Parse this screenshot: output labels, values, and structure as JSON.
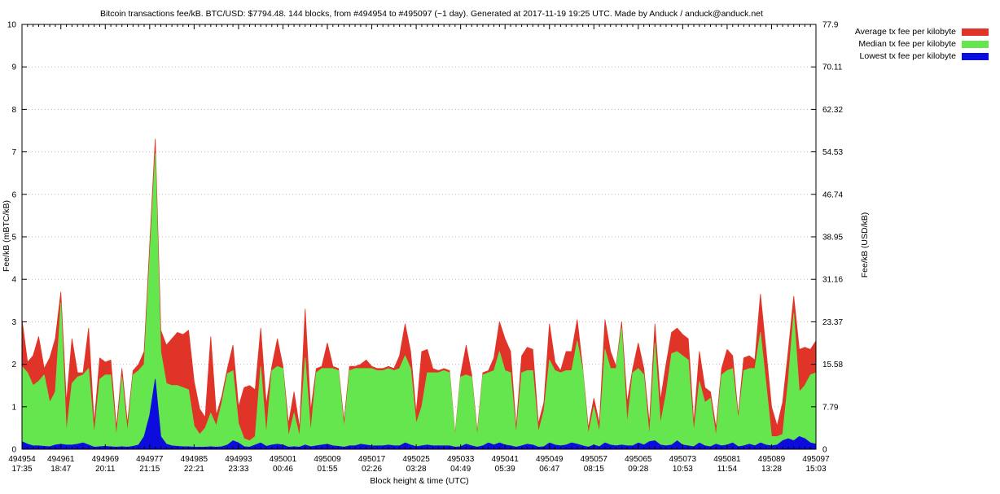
{
  "title": "Bitcoin transactions fee/kB. BTC/USD: $7794.48. 144 blocks, from #494954 to #495097 (~1 day). Generated at 2017-11-19 19:25 UTC. Made by Anduck / anduck@anduck.net",
  "legend": {
    "items": [
      {
        "label": "Average tx fee per kilobyte",
        "color": "#e13428"
      },
      {
        "label": "Median tx fee per kilobyte",
        "color": "#65e64e"
      },
      {
        "label": "Lowest tx fee per kilobyte",
        "color": "#0c0cdc"
      }
    ]
  },
  "axes": {
    "left": {
      "title": "Fee/kB (mBTC/kB)",
      "ticks": [
        "0",
        "1",
        "2",
        "3",
        "4",
        "5",
        "6",
        "7",
        "8",
        "9",
        "10"
      ]
    },
    "right": {
      "title": "Fee/kB (USD/kB)",
      "ticks": [
        "0",
        "7.79",
        "15.58",
        "23.37",
        "31.16",
        "38.95",
        "46.74",
        "54.53",
        "62.32",
        "70.11",
        "77.9"
      ]
    },
    "x": {
      "title": "Block height & time (UTC)",
      "ticks": [
        {
          "block": "494954",
          "time": "17:35"
        },
        {
          "block": "494961",
          "time": "18:47"
        },
        {
          "block": "494969",
          "time": "20:11"
        },
        {
          "block": "494977",
          "time": "21:15"
        },
        {
          "block": "494985",
          "time": "22:21"
        },
        {
          "block": "494993",
          "time": "23:33"
        },
        {
          "block": "495001",
          "time": "00:46"
        },
        {
          "block": "495009",
          "time": "01:55"
        },
        {
          "block": "495017",
          "time": "02:26"
        },
        {
          "block": "495025",
          "time": "03:28"
        },
        {
          "block": "495033",
          "time": "04:49"
        },
        {
          "block": "495041",
          "time": "05:39"
        },
        {
          "block": "495049",
          "time": "06:47"
        },
        {
          "block": "495057",
          "time": "08:15"
        },
        {
          "block": "495065",
          "time": "09:28"
        },
        {
          "block": "495073",
          "time": "10:53"
        },
        {
          "block": "495081",
          "time": "11:54"
        },
        {
          "block": "495089",
          "time": "13:28"
        },
        {
          "block": "495097",
          "time": "15:03"
        }
      ]
    }
  },
  "chart_data": {
    "type": "area",
    "title": "Bitcoin transactions fee/kB",
    "btc_usd": "7794.48",
    "block_count": 144,
    "x_start_block": 494954,
    "x_end_block": 495097,
    "ylim": [
      0,
      10
    ],
    "right_ylim": [
      0,
      77.9
    ],
    "grid": "horizontal-dotted",
    "legend_position": "outside-top-right",
    "series": [
      {
        "name": "Average tx fee per kilobyte",
        "color": "#e13428",
        "values": [
          3.05,
          2.05,
          2.2,
          2.65,
          1.9,
          2.15,
          2.6,
          3.7,
          1.1,
          2.6,
          1.8,
          1.8,
          2.85,
          0.6,
          2.15,
          2.05,
          2.1,
          0.5,
          1.9,
          0.6,
          1.85,
          2.0,
          2.3,
          4.8,
          7.3,
          2.8,
          2.45,
          2.6,
          2.75,
          2.7,
          2.8,
          1.6,
          0.95,
          0.75,
          2.65,
          0.8,
          1.25,
          1.9,
          2.45,
          1.0,
          1.45,
          1.5,
          1.4,
          2.85,
          1.05,
          1.95,
          2.6,
          1.95,
          0.6,
          1.35,
          0.5,
          3.3,
          0.9,
          1.9,
          1.95,
          2.5,
          1.95,
          1.9,
          0.65,
          1.95,
          1.95,
          2.0,
          2.1,
          1.95,
          1.9,
          1.9,
          1.95,
          1.9,
          2.2,
          2.95,
          2.3,
          0.85,
          2.3,
          2.35,
          1.9,
          1.85,
          1.9,
          1.85,
          0.35,
          1.75,
          2.45,
          1.75,
          0.4,
          1.8,
          1.85,
          2.15,
          3.0,
          2.6,
          2.3,
          0.5,
          2.2,
          2.4,
          2.35,
          0.6,
          1.1,
          2.95,
          2.05,
          1.85,
          2.3,
          2.3,
          3.05,
          1.9,
          0.5,
          1.2,
          0.6,
          3.05,
          2.3,
          1.95,
          3.0,
          1.1,
          1.9,
          2.5,
          1.9,
          0.6,
          2.95,
          1.15,
          2.0,
          2.75,
          2.85,
          2.7,
          2.6,
          0.6,
          2.3,
          1.45,
          1.35,
          0.5,
          1.9,
          2.35,
          2.2,
          0.8,
          2.15,
          2.2,
          2.1,
          3.65,
          2.35,
          1.0,
          0.55,
          1.1,
          2.3,
          3.6,
          2.35,
          2.4,
          2.35,
          2.55
        ]
      },
      {
        "name": "Median tx fee per kilobyte",
        "color": "#65e64e",
        "values": [
          1.95,
          1.8,
          1.5,
          1.6,
          1.75,
          1.1,
          1.35,
          3.45,
          0.4,
          1.55,
          1.7,
          1.75,
          1.9,
          0.35,
          1.65,
          1.75,
          1.75,
          0.3,
          1.7,
          0.4,
          1.75,
          1.85,
          2.0,
          4.5,
          6.95,
          2.3,
          1.55,
          1.5,
          1.5,
          1.45,
          1.4,
          0.55,
          0.35,
          0.5,
          0.85,
          0.55,
          1.1,
          1.78,
          1.85,
          0.6,
          0.25,
          0.2,
          0.3,
          1.95,
          0.35,
          1.85,
          1.95,
          1.9,
          0.3,
          0.85,
          0.3,
          2.15,
          0.4,
          1.8,
          1.9,
          1.9,
          1.9,
          1.85,
          0.5,
          1.85,
          1.9,
          1.9,
          1.9,
          1.9,
          1.85,
          1.85,
          1.9,
          1.85,
          1.9,
          2.2,
          1.9,
          0.6,
          1.0,
          1.8,
          1.8,
          1.8,
          1.85,
          1.8,
          0.3,
          1.7,
          1.75,
          1.7,
          0.3,
          1.75,
          1.8,
          1.85,
          2.3,
          1.85,
          1.8,
          0.35,
          1.8,
          1.85,
          1.85,
          0.4,
          0.9,
          2.1,
          1.85,
          1.8,
          1.85,
          1.85,
          2.55,
          1.85,
          0.35,
          1.0,
          0.4,
          2.35,
          1.9,
          1.9,
          2.85,
          0.6,
          1.8,
          1.9,
          1.75,
          0.3,
          2.5,
          0.6,
          1.3,
          2.25,
          2.3,
          2.2,
          2.1,
          0.4,
          1.6,
          1.1,
          1.2,
          0.3,
          1.75,
          1.85,
          1.9,
          0.7,
          1.85,
          1.9,
          1.9,
          2.75,
          1.55,
          0.3,
          0.3,
          0.35,
          1.6,
          3.2,
          1.35,
          1.5,
          1.75,
          1.8
        ]
      },
      {
        "name": "Lowest tx fee per kilobyte",
        "color": "#0c0cdc",
        "values": [
          0.18,
          0.12,
          0.08,
          0.08,
          0.07,
          0.06,
          0.1,
          0.12,
          0.1,
          0.1,
          0.12,
          0.15,
          0.1,
          0.05,
          0.06,
          0.07,
          0.06,
          0.05,
          0.06,
          0.05,
          0.07,
          0.1,
          0.3,
          0.8,
          1.65,
          0.3,
          0.12,
          0.08,
          0.07,
          0.06,
          0.06,
          0.05,
          0.05,
          0.05,
          0.06,
          0.05,
          0.06,
          0.1,
          0.2,
          0.15,
          0.06,
          0.05,
          0.1,
          0.15,
          0.07,
          0.1,
          0.12,
          0.1,
          0.05,
          0.06,
          0.05,
          0.1,
          0.06,
          0.08,
          0.1,
          0.12,
          0.08,
          0.07,
          0.05,
          0.08,
          0.08,
          0.12,
          0.1,
          0.08,
          0.08,
          0.08,
          0.1,
          0.08,
          0.08,
          0.15,
          0.1,
          0.06,
          0.08,
          0.1,
          0.08,
          0.08,
          0.08,
          0.08,
          0.05,
          0.06,
          0.12,
          0.08,
          0.05,
          0.08,
          0.15,
          0.1,
          0.15,
          0.1,
          0.08,
          0.05,
          0.08,
          0.12,
          0.1,
          0.05,
          0.06,
          0.15,
          0.1,
          0.08,
          0.1,
          0.15,
          0.12,
          0.08,
          0.05,
          0.1,
          0.06,
          0.15,
          0.1,
          0.08,
          0.1,
          0.08,
          0.08,
          0.15,
          0.1,
          0.18,
          0.2,
          0.1,
          0.08,
          0.1,
          0.2,
          0.1,
          0.08,
          0.06,
          0.15,
          0.08,
          0.06,
          0.12,
          0.08,
          0.1,
          0.15,
          0.06,
          0.08,
          0.12,
          0.08,
          0.15,
          0.1,
          0.08,
          0.1,
          0.2,
          0.25,
          0.2,
          0.3,
          0.25,
          0.15,
          0.12
        ]
      }
    ]
  },
  "plot_style": {
    "grid_color": "#bbbbbb",
    "border_color": "#000000",
    "background": "#ffffff"
  }
}
